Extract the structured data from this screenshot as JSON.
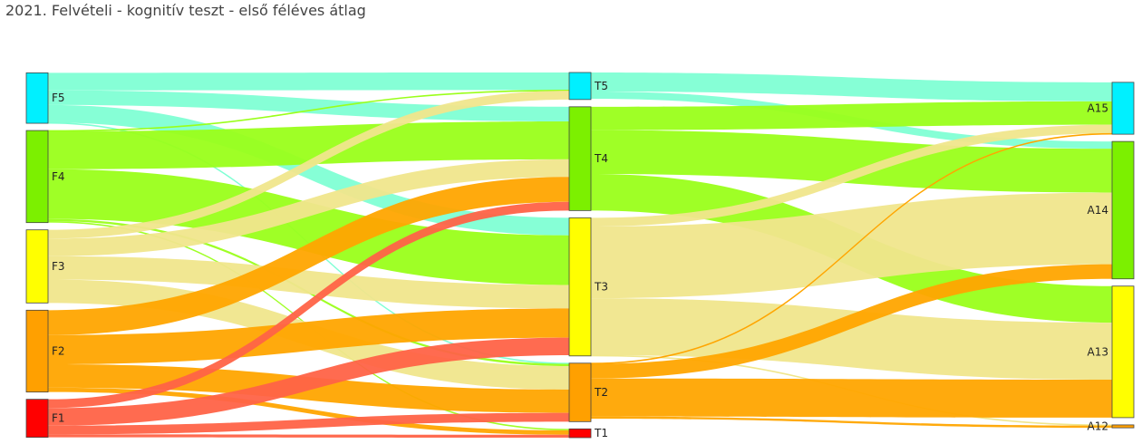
{
  "chart_data": {
    "type": "sankey",
    "title": "2021. Felvételi - kognitív teszt - első féléves átlag",
    "stages": [
      {
        "name": "",
        "nodes": [
          "F5",
          "F4",
          "F3",
          "F2",
          "F1"
        ]
      },
      {
        "name": "",
        "nodes": [
          "T5",
          "T4",
          "T3",
          "T2",
          "T1"
        ]
      },
      {
        "name": "",
        "nodes": [
          "A15",
          "A14",
          "A13",
          "A12"
        ]
      }
    ],
    "node_colors": {
      "F5": "#00f0ff",
      "F4": "#7cf000",
      "F3": "#ffff00",
      "F2": "#ffa000",
      "F1": "#ff0000",
      "T5": "#00f0ff",
      "T4": "#7cf000",
      "T3": "#ffff00",
      "T2": "#ffa000",
      "T1": "#ff0000",
      "A15": "#00f0ff",
      "A14": "#7cf000",
      "A13": "#ffff00",
      "A12": "#ffa000"
    },
    "link_colors": {
      "F5": "#7fffd4",
      "F4": "#9aff1a",
      "F3": "#f0e68c",
      "F2": "#ffa500",
      "F1": "#ff6347",
      "T5": "#7fffd4",
      "T4": "#9aff1a",
      "T3": "#f0e68c",
      "T2": "#ffa500",
      "T1": "#ff6347"
    },
    "links": [
      {
        "source": "F5",
        "target": "T5",
        "value": 12
      },
      {
        "source": "F5",
        "target": "T4",
        "value": 10
      },
      {
        "source": "F5",
        "target": "T3",
        "value": 12
      },
      {
        "source": "F5",
        "target": "T2",
        "value": 0.5
      },
      {
        "source": "F4",
        "target": "T5",
        "value": 0.5
      },
      {
        "source": "F4",
        "target": "T4",
        "value": 26
      },
      {
        "source": "F4",
        "target": "T3",
        "value": 34
      },
      {
        "source": "F4",
        "target": "T2",
        "value": 1.5
      },
      {
        "source": "F4",
        "target": "T1",
        "value": 1
      },
      {
        "source": "F3",
        "target": "T5",
        "value": 6
      },
      {
        "source": "F3",
        "target": "T4",
        "value": 12
      },
      {
        "source": "F3",
        "target": "T3",
        "value": 16
      },
      {
        "source": "F3",
        "target": "T2",
        "value": 16
      },
      {
        "source": "F2",
        "target": "T4",
        "value": 17
      },
      {
        "source": "F2",
        "target": "T3",
        "value": 20
      },
      {
        "source": "F2",
        "target": "T2",
        "value": 16
      },
      {
        "source": "F2",
        "target": "T1",
        "value": 3
      },
      {
        "source": "F1",
        "target": "T4",
        "value": 6
      },
      {
        "source": "F1",
        "target": "T3",
        "value": 12
      },
      {
        "source": "F1",
        "target": "T2",
        "value": 6
      },
      {
        "source": "F1",
        "target": "T1",
        "value": 2
      },
      {
        "source": "T5",
        "target": "A15",
        "value": 13
      },
      {
        "source": "T5",
        "target": "A14",
        "value": 5
      },
      {
        "source": "T4",
        "target": "A15",
        "value": 16
      },
      {
        "source": "T4",
        "target": "A14",
        "value": 30
      },
      {
        "source": "T4",
        "target": "A13",
        "value": 25
      },
      {
        "source": "T3",
        "target": "A15",
        "value": 6
      },
      {
        "source": "T3",
        "target": "A14",
        "value": 49
      },
      {
        "source": "T3",
        "target": "A13",
        "value": 39
      },
      {
        "source": "T3",
        "target": "A12",
        "value": 0.5
      },
      {
        "source": "T2",
        "target": "A15",
        "value": 0.5
      },
      {
        "source": "T2",
        "target": "A14",
        "value": 10
      },
      {
        "source": "T2",
        "target": "A13",
        "value": 26
      },
      {
        "source": "T2",
        "target": "A12",
        "value": 1.5
      }
    ]
  }
}
